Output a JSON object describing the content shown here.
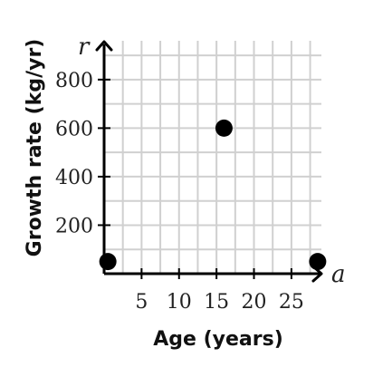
{
  "chart_data": {
    "type": "scatter",
    "xlabel": "Age (years)",
    "ylabel": "Growth rate (kg/yr)",
    "x_variable": "a",
    "y_variable": "r",
    "xlim": [
      0,
      29
    ],
    "ylim": [
      0,
      960
    ],
    "x_ticks": [
      5,
      10,
      15,
      20,
      25
    ],
    "y_ticks": [
      200,
      400,
      600,
      800
    ],
    "x_grid_step": 2.5,
    "y_grid_step": 100,
    "grid": true,
    "points": [
      {
        "x": 0.5,
        "y": 50
      },
      {
        "x": 16,
        "y": 600
      },
      {
        "x": 28.5,
        "y": 50
      }
    ],
    "colors": {
      "point": "#000000",
      "axis": "#000000",
      "grid": "#d0d0d0"
    }
  }
}
